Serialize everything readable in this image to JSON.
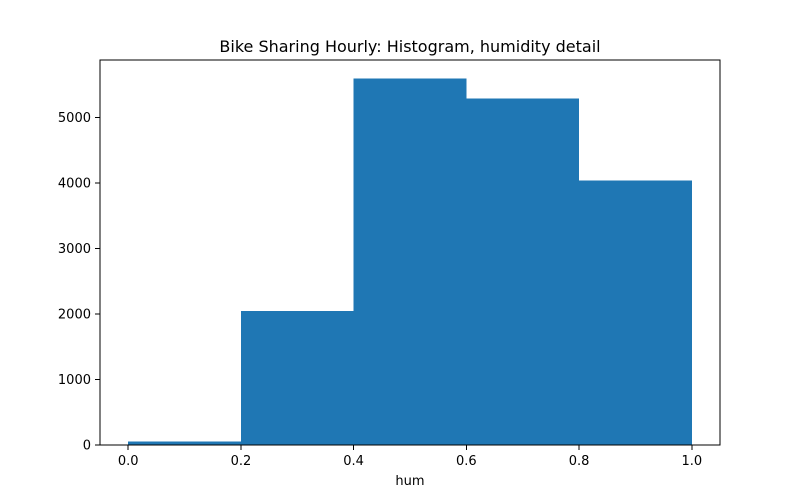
{
  "chart_data": {
    "type": "bar",
    "title": "Bike Sharing Hourly: Histogram, humidity detail",
    "xlabel": "hum",
    "ylabel": "",
    "bins": [
      {
        "start": 0.0,
        "end": 0.2,
        "value": 55
      },
      {
        "start": 0.2,
        "end": 0.4,
        "value": 2050
      },
      {
        "start": 0.4,
        "end": 0.6,
        "value": 5600
      },
      {
        "start": 0.6,
        "end": 0.8,
        "value": 5290
      },
      {
        "start": 0.8,
        "end": 1.0,
        "value": 4040
      }
    ],
    "xlim": [
      -0.05,
      1.05
    ],
    "ylim": [
      0,
      5880
    ],
    "xticks": [
      0.0,
      0.2,
      0.4,
      0.6,
      0.8,
      1.0
    ],
    "xtick_labels": [
      "0.0",
      "0.2",
      "0.4",
      "0.6",
      "0.8",
      "1.0"
    ],
    "yticks": [
      0,
      1000,
      2000,
      3000,
      4000,
      5000
    ],
    "ytick_labels": [
      "0",
      "1000",
      "2000",
      "3000",
      "4000",
      "5000"
    ],
    "bar_color": "#1f77b4",
    "grid": false,
    "legend": "none"
  }
}
